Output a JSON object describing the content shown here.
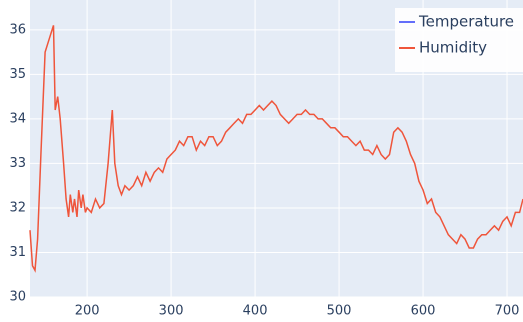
{
  "chart_data": {
    "type": "line",
    "series": [
      {
        "name": "Temperature",
        "color": "#636efa",
        "x": [],
        "values": []
      },
      {
        "name": "Humidity",
        "color": "#ef553b",
        "x": [
          132,
          135,
          138,
          141,
          145,
          150,
          155,
          160,
          162,
          165,
          168,
          172,
          175,
          178,
          180,
          183,
          185,
          188,
          190,
          193,
          195,
          198,
          200,
          205,
          210,
          215,
          220,
          225,
          230,
          233,
          237,
          241,
          245,
          250,
          255,
          260,
          265,
          270,
          275,
          280,
          285,
          290,
          295,
          300,
          305,
          310,
          315,
          320,
          325,
          330,
          335,
          340,
          345,
          350,
          355,
          360,
          365,
          370,
          375,
          380,
          385,
          390,
          395,
          400,
          405,
          410,
          415,
          420,
          425,
          430,
          435,
          440,
          445,
          450,
          455,
          460,
          465,
          470,
          475,
          480,
          485,
          490,
          495,
          500,
          505,
          510,
          515,
          520,
          525,
          530,
          535,
          540,
          545,
          550,
          555,
          560,
          565,
          570,
          575,
          580,
          585,
          590,
          595,
          600,
          605,
          610,
          615,
          620,
          625,
          630,
          635,
          640,
          645,
          650,
          655,
          660,
          665,
          670,
          675,
          680,
          685,
          690,
          695,
          700,
          705,
          710,
          715,
          719
        ],
        "values": [
          31.5,
          30.7,
          30.6,
          31.3,
          33.2,
          35.5,
          35.8,
          36.1,
          34.2,
          34.5,
          34.0,
          33.0,
          32.2,
          31.8,
          32.3,
          31.9,
          32.2,
          31.8,
          32.4,
          32.0,
          32.3,
          31.9,
          32.0,
          31.9,
          32.2,
          32.0,
          32.1,
          33.0,
          34.2,
          33.0,
          32.5,
          32.3,
          32.5,
          32.4,
          32.5,
          32.7,
          32.5,
          32.8,
          32.6,
          32.8,
          32.9,
          32.8,
          33.1,
          33.2,
          33.3,
          33.5,
          33.4,
          33.6,
          33.6,
          33.3,
          33.5,
          33.4,
          33.6,
          33.6,
          33.4,
          33.5,
          33.7,
          33.8,
          33.9,
          34.0,
          33.9,
          34.1,
          34.1,
          34.2,
          34.3,
          34.2,
          34.3,
          34.4,
          34.3,
          34.1,
          34.0,
          33.9,
          34.0,
          34.1,
          34.1,
          34.2,
          34.1,
          34.1,
          34.0,
          34.0,
          33.9,
          33.8,
          33.8,
          33.7,
          33.6,
          33.6,
          33.5,
          33.4,
          33.5,
          33.3,
          33.3,
          33.2,
          33.4,
          33.2,
          33.1,
          33.2,
          33.7,
          33.8,
          33.7,
          33.5,
          33.2,
          33.0,
          32.6,
          32.4,
          32.1,
          32.2,
          31.9,
          31.8,
          31.6,
          31.4,
          31.3,
          31.2,
          31.4,
          31.3,
          31.1,
          31.1,
          31.3,
          31.4,
          31.4,
          31.5,
          31.6,
          31.5,
          31.7,
          31.8,
          31.6,
          31.9,
          31.9,
          32.2
        ]
      }
    ],
    "xlim": [
      132,
      719
    ],
    "ylim": [
      30,
      36.67
    ],
    "xticks": [
      200,
      300,
      400,
      500,
      600,
      700
    ],
    "yticks": [
      30,
      31,
      32,
      33,
      34,
      35,
      36
    ],
    "grid": true,
    "legend": "top-right"
  }
}
